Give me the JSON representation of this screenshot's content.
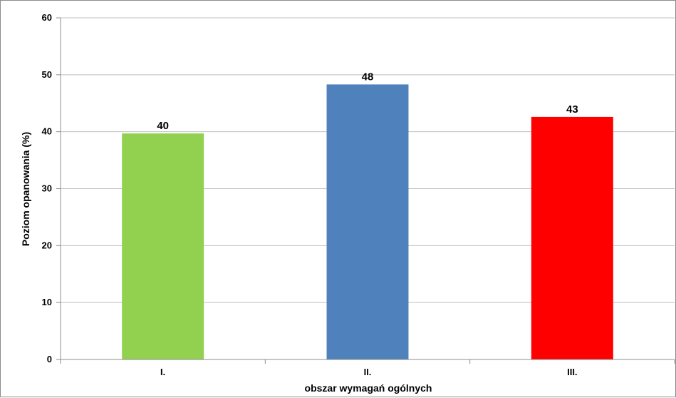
{
  "chart_data": {
    "type": "bar",
    "title": "",
    "xlabel": "obszar wymagań ogólnych",
    "ylabel": "Poziom opanowania (%)",
    "categories": [
      "I.",
      "II.",
      "III."
    ],
    "values": [
      39.7,
      48.3,
      42.6
    ],
    "data_labels": [
      "40",
      "48",
      "43"
    ],
    "colors": [
      "#92d050",
      "#4f81bd",
      "#ff0000"
    ],
    "ylim": [
      0,
      60
    ],
    "yticks": [
      0,
      10,
      20,
      30,
      40,
      50,
      60
    ],
    "grid": true,
    "legend": "none"
  }
}
